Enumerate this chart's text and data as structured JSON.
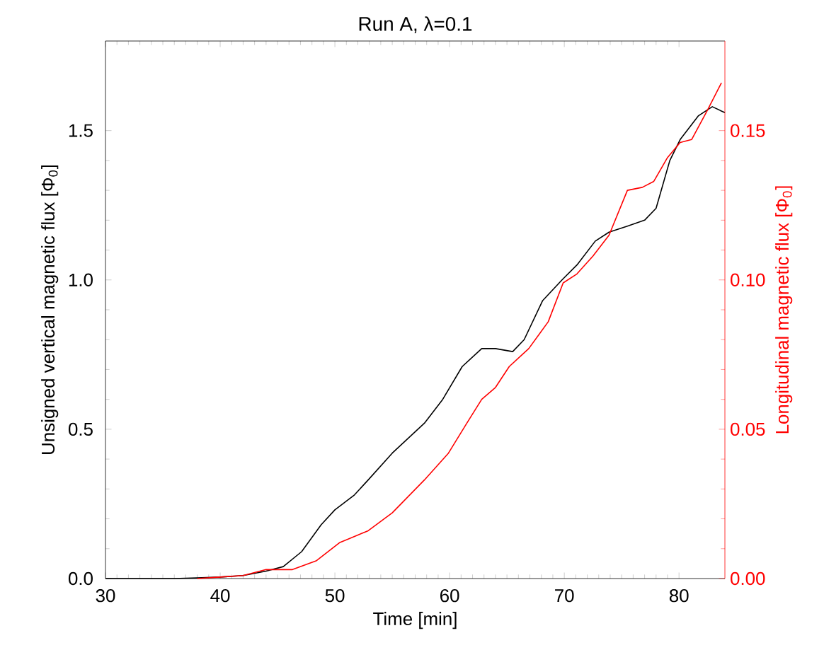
{
  "chart_data": {
    "type": "line",
    "title": "Run A, λ=0.1",
    "xlabel": "Time [min]",
    "ylabel": "Unsigned vertical magnetic flux [Φ$_{0}$]",
    "y2label": "Longitudinal magnetic flux [Φ$_{0}$]",
    "xlim": [
      30,
      84
    ],
    "xticks": [
      30,
      40,
      50,
      60,
      70,
      80
    ],
    "ylim": [
      0,
      1.8
    ],
    "yticks": [
      {
        "value": 0,
        "label": "0.0"
      },
      {
        "value": 0.5,
        "label": "0.5"
      },
      {
        "value": 1,
        "label": "1.0"
      },
      {
        "value": 1.5,
        "label": "1.5"
      }
    ],
    "y2lim": [
      0,
      0.18
    ],
    "y2ticks": [
      {
        "value": 0,
        "label": "0.00"
      },
      {
        "value": 0.05,
        "label": "0.05"
      },
      {
        "value": 0.1,
        "label": "0.10"
      },
      {
        "value": 0.15,
        "label": "0.15"
      }
    ],
    "grid": false,
    "legend": false,
    "marker": "none",
    "line_style": "solid",
    "series": [
      {
        "color": "#000000",
        "x": [
          30,
          36,
          38,
          40,
          42,
          44,
          45.5,
          47.1,
          48.8,
          50.0,
          51.7,
          52.9,
          55.0,
          57.8,
          59.4,
          61.1,
          62.8,
          64.0,
          65.5,
          66.5,
          68.1,
          69.8,
          71.1,
          72.7,
          73.9,
          75.5,
          77.0,
          78.0,
          79.2,
          80.1,
          81.7,
          82.9,
          84
        ],
        "values": [
          0,
          0,
          0.002,
          0.005,
          0.01,
          0.025,
          0.04,
          0.09,
          0.18,
          0.23,
          0.28,
          0.33,
          0.42,
          0.52,
          0.6,
          0.71,
          0.77,
          0.77,
          0.76,
          0.8,
          0.93,
          1.0,
          1.05,
          1.13,
          1.16,
          1.18,
          1.2,
          1.24,
          1.4,
          1.47,
          1.55,
          1.58,
          1.56
        ]
      },
      {
        "color": "#ff0000",
        "axis": "y2",
        "x": [
          38,
          40,
          42,
          44,
          46.3,
          48.4,
          50.4,
          52.9,
          55.0,
          57.8,
          59.9,
          61.5,
          62.8,
          64.0,
          65.2,
          66.9,
          68.6,
          69.9,
          71.1,
          72.5,
          73.9,
          75.5,
          76.8,
          77.8,
          79.0,
          80.1,
          81.1,
          82.5,
          83.7
        ],
        "values": [
          0,
          0.0005,
          0.001,
          0.003,
          0.003,
          0.006,
          0.012,
          0.016,
          0.022,
          0.033,
          0.042,
          0.052,
          0.06,
          0.064,
          0.071,
          0.077,
          0.086,
          0.099,
          0.102,
          0.108,
          0.115,
          0.13,
          0.131,
          0.133,
          0.141,
          0.146,
          0.147,
          0.157,
          0.166
        ]
      }
    ]
  }
}
